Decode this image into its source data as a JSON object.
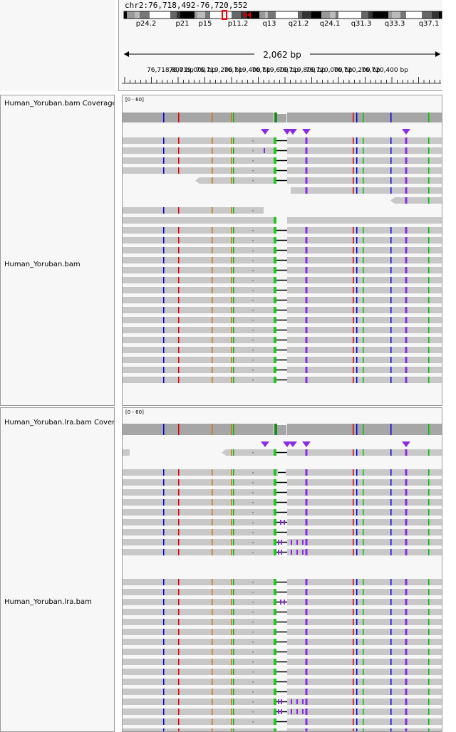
{
  "header": {
    "locus": "chr2:76,718,492-76,720,552",
    "bands": [
      "p24.2",
      "p21",
      "p15",
      "p11.2",
      "q13",
      "q21.2",
      "q24.1",
      "q31.3",
      "q33.3",
      "q37.1"
    ],
    "span": "2,062 bp",
    "ticks": [
      "76,718,800 bp",
      "76,719,000 bp",
      "76,719,200 bp",
      "76,719,400 bp",
      "76,719,600 bp",
      "76,719,800 bp",
      "76,720,000 bp",
      "76,720,200 bp",
      "76,720,400 bp"
    ]
  },
  "tracks": [
    {
      "coverage_name": "Human_Yoruban.bam Coverage",
      "coverage_range": "[0 - 60]",
      "alignment_name": "Human_Yoruban.bam"
    },
    {
      "coverage_name": "Human_Yoruban.lra.bam Coverage",
      "coverage_range": "[0 - 60]",
      "alignment_name": "Human_Yoruban.lra.bam"
    }
  ],
  "colors": {
    "read": "#c8c8c8",
    "coverage": "#a6a6a6",
    "insertion": "#8a2be2",
    "mismatch_A": "#00c000",
    "mismatch_C": "#0000e0",
    "mismatch_G": "#d17105",
    "mismatch_T": "#e00000",
    "centromere": "#d00000"
  }
}
